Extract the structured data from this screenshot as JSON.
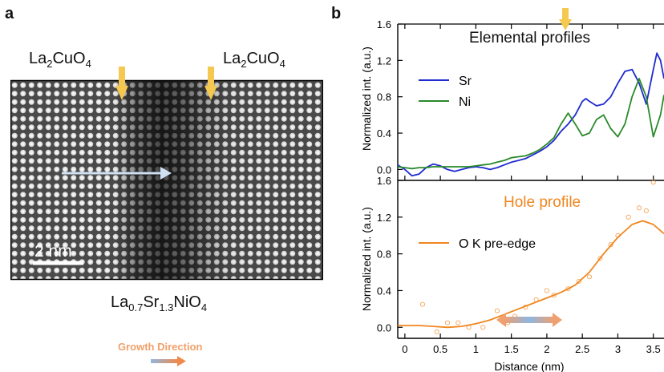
{
  "panel_a": {
    "letter": "a",
    "label_left": {
      "base": "La",
      "sub1": "2",
      "mid": "CuO",
      "sub2": "4"
    },
    "label_right": {
      "base": "La",
      "sub1": "2",
      "mid": "CuO",
      "sub2": "4"
    },
    "label_bottom": {
      "p1": "La",
      "s1": "0.7",
      "p2": "Sr",
      "s2": "1.3",
      "p3": "NiO",
      "s3": "4"
    },
    "scale_bar": "2 nm",
    "growth_direction": "Growth Direction",
    "colors": {
      "marker_arrow": "#f5c84f",
      "direction_arrow": "#cfe0f2"
    }
  },
  "panel_b": {
    "letter": "b",
    "colors": {
      "sr": "#1f2bd1",
      "ni": "#2a8a2a",
      "ok": "#f0861e"
    }
  },
  "chart_data": [
    {
      "type": "line",
      "title": "Elemental profiles",
      "xlabel": "",
      "ylabel": "Normalized int. (a.u.)",
      "xlim": [
        -0.1,
        3.65
      ],
      "ylim": [
        -0.12,
        1.6
      ],
      "yticks": [
        "0.0",
        "0.4",
        "0.8",
        "1.2",
        "1.6"
      ],
      "legend": "left",
      "series": [
        {
          "name": "Sr",
          "x": [
            -0.1,
            0,
            0.1,
            0.2,
            0.3,
            0.4,
            0.5,
            0.6,
            0.7,
            0.8,
            0.9,
            1.0,
            1.1,
            1.2,
            1.3,
            1.4,
            1.5,
            1.6,
            1.7,
            1.8,
            1.9,
            2.0,
            2.1,
            2.2,
            2.3,
            2.4,
            2.5,
            2.55,
            2.6,
            2.7,
            2.8,
            2.9,
            3.0,
            3.1,
            3.2,
            3.3,
            3.4,
            3.5,
            3.55,
            3.6,
            3.65
          ],
          "y": [
            0.05,
            0.0,
            -0.07,
            -0.05,
            0.02,
            0.06,
            0.04,
            0.0,
            -0.02,
            0.0,
            0.02,
            0.03,
            0.02,
            0.0,
            0.02,
            0.05,
            0.08,
            0.1,
            0.12,
            0.16,
            0.2,
            0.25,
            0.32,
            0.42,
            0.5,
            0.6,
            0.75,
            0.78,
            0.75,
            0.7,
            0.72,
            0.8,
            0.95,
            1.08,
            1.1,
            0.95,
            0.72,
            1.1,
            1.28,
            1.2,
            1.0
          ]
        },
        {
          "name": "Ni",
          "x": [
            -0.1,
            0,
            0.1,
            0.2,
            0.3,
            0.4,
            0.5,
            0.6,
            0.7,
            0.8,
            0.9,
            1.0,
            1.1,
            1.2,
            1.3,
            1.4,
            1.5,
            1.6,
            1.7,
            1.8,
            1.9,
            2.0,
            2.1,
            2.2,
            2.3,
            2.4,
            2.5,
            2.6,
            2.7,
            2.8,
            2.9,
            3.0,
            3.1,
            3.2,
            3.3,
            3.4,
            3.5,
            3.6,
            3.65
          ],
          "y": [
            0.03,
            0.02,
            0.01,
            0.02,
            0.02,
            0.03,
            0.03,
            0.03,
            0.03,
            0.03,
            0.03,
            0.04,
            0.05,
            0.06,
            0.08,
            0.1,
            0.13,
            0.14,
            0.15,
            0.18,
            0.22,
            0.28,
            0.35,
            0.5,
            0.62,
            0.5,
            0.37,
            0.4,
            0.55,
            0.6,
            0.45,
            0.36,
            0.5,
            0.8,
            1.0,
            0.8,
            0.36,
            0.6,
            0.82
          ]
        }
      ]
    },
    {
      "type": "line",
      "title": "Hole profile",
      "xlabel": "Distance (nm)",
      "ylabel": "Normalized int. (a.u.)",
      "xlim": [
        -0.1,
        3.65
      ],
      "ylim": [
        -0.12,
        1.6
      ],
      "xticks": [
        "0",
        "0.5",
        "1",
        "1.5",
        "2",
        "2.5",
        "3",
        "3.5"
      ],
      "yticks": [
        "0.0",
        "0.4",
        "0.8",
        "1.2",
        "1.6"
      ],
      "legend": "left",
      "series": [
        {
          "name": "O K pre-edge",
          "x": [
            -0.1,
            0,
            0.2,
            0.4,
            0.6,
            0.8,
            1.0,
            1.2,
            1.4,
            1.6,
            1.8,
            2.0,
            2.2,
            2.4,
            2.6,
            2.8,
            3.0,
            3.2,
            3.35,
            3.5,
            3.65
          ],
          "y": [
            0.02,
            0.02,
            0.02,
            0.01,
            0.0,
            0.01,
            0.04,
            0.08,
            0.14,
            0.2,
            0.26,
            0.32,
            0.38,
            0.46,
            0.6,
            0.8,
            0.98,
            1.12,
            1.16,
            1.12,
            1.02
          ]
        },
        {
          "name": "",
          "style": "scatter",
          "x": [
            0.25,
            0.45,
            0.6,
            0.75,
            0.9,
            1.1,
            1.3,
            1.45,
            1.55,
            1.7,
            1.85,
            2.0,
            2.1,
            2.3,
            2.45,
            2.6,
            2.75,
            2.9,
            3.0,
            3.15,
            3.3,
            3.4,
            3.5
          ],
          "y": [
            0.25,
            -0.05,
            0.05,
            0.05,
            0.0,
            0.0,
            0.18,
            0.05,
            0.12,
            0.22,
            0.3,
            0.4,
            0.35,
            0.42,
            0.5,
            0.55,
            0.75,
            0.9,
            1.0,
            1.2,
            1.3,
            1.27,
            1.58
          ]
        }
      ]
    }
  ]
}
